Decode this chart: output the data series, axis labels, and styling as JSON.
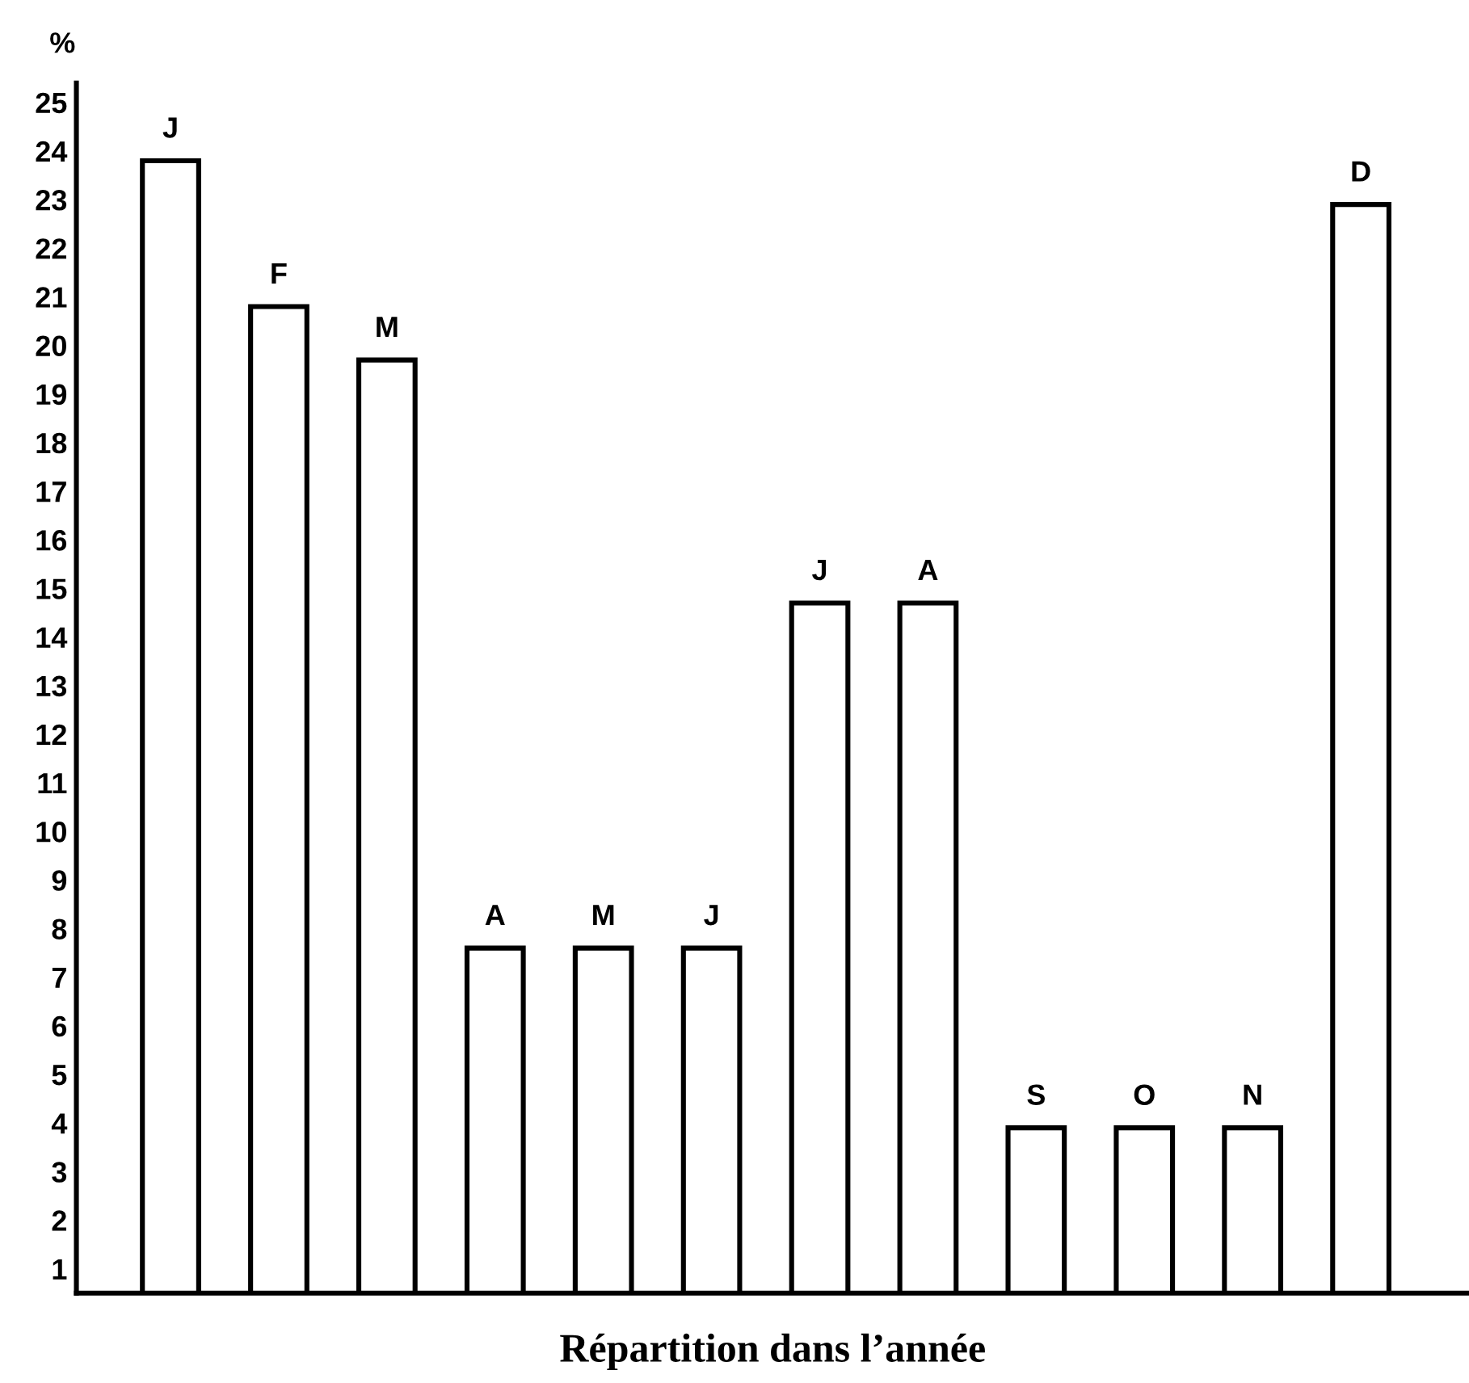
{
  "chart_data": {
    "type": "bar",
    "categories": [
      "J",
      "F",
      "M",
      "A",
      "M",
      "J",
      "J",
      "A",
      "S",
      "O",
      "N",
      "D"
    ],
    "values": [
      23.8,
      20.8,
      19.7,
      7.6,
      7.6,
      7.6,
      14.7,
      14.7,
      3.9,
      3.9,
      3.9,
      22.9
    ],
    "color": "#ffffff",
    "xlabel": "Répartition dans l’année",
    "ylabel": "%",
    "ylim": [
      0.5,
      25.4
    ],
    "yticks": [
      1,
      2,
      3,
      4,
      5,
      6,
      7,
      8,
      9,
      10,
      11,
      12,
      13,
      14,
      15,
      16,
      17,
      18,
      19,
      20,
      21,
      22,
      23,
      24,
      25
    ],
    "tick_labels": "y",
    "grid": false,
    "legend": false
  }
}
